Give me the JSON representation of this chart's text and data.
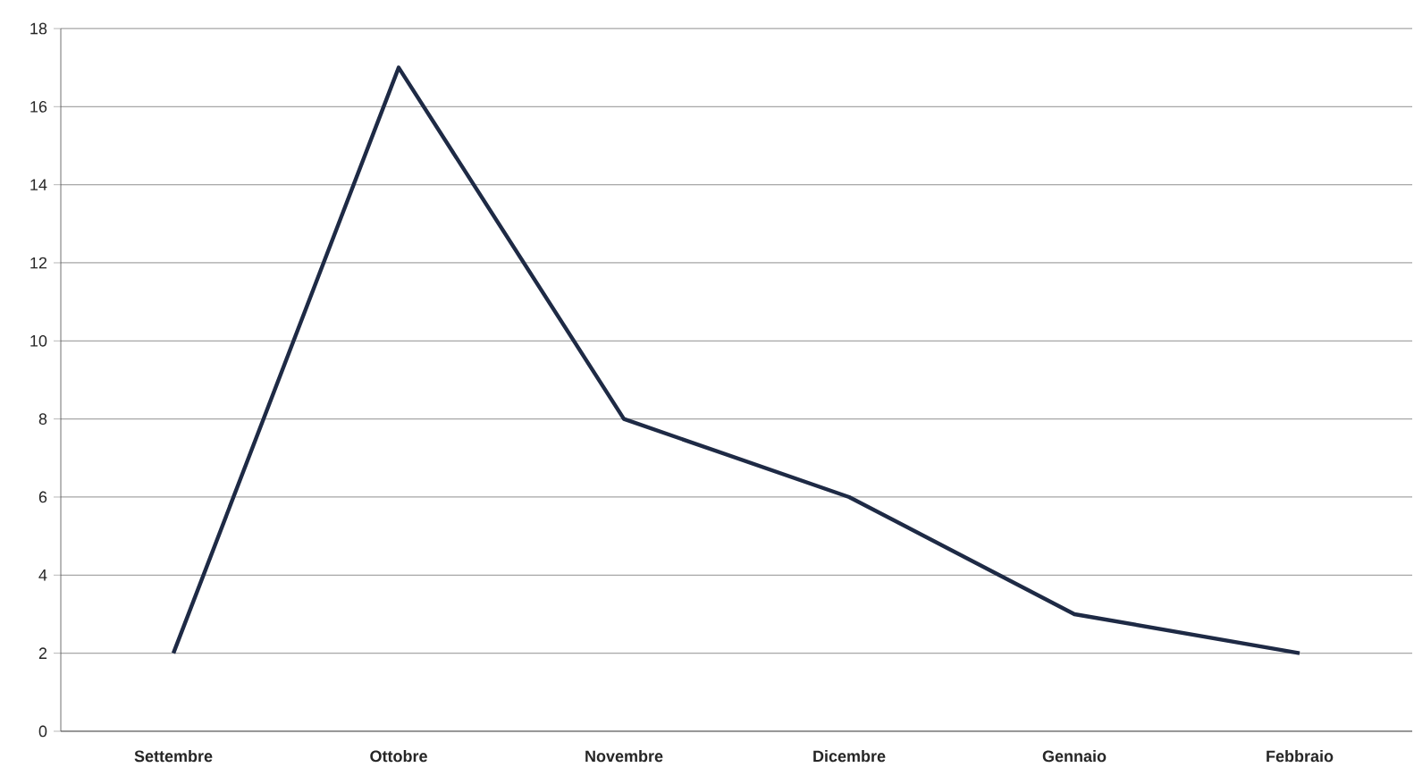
{
  "chart_data": {
    "type": "line",
    "categories": [
      "Settembre",
      "Ottobre",
      "Novembre",
      "Dicembre",
      "Gennaio",
      "Febbraio"
    ],
    "series": [
      {
        "color": "#1e2a45",
        "values": [
          2,
          17,
          8,
          6,
          3,
          2
        ]
      }
    ],
    "ylim": [
      0,
      18
    ],
    "yticks": [
      0,
      2,
      4,
      6,
      8,
      10,
      12,
      14,
      16,
      18
    ],
    "grid": "y",
    "marker": "none",
    "line_style": "solid"
  }
}
